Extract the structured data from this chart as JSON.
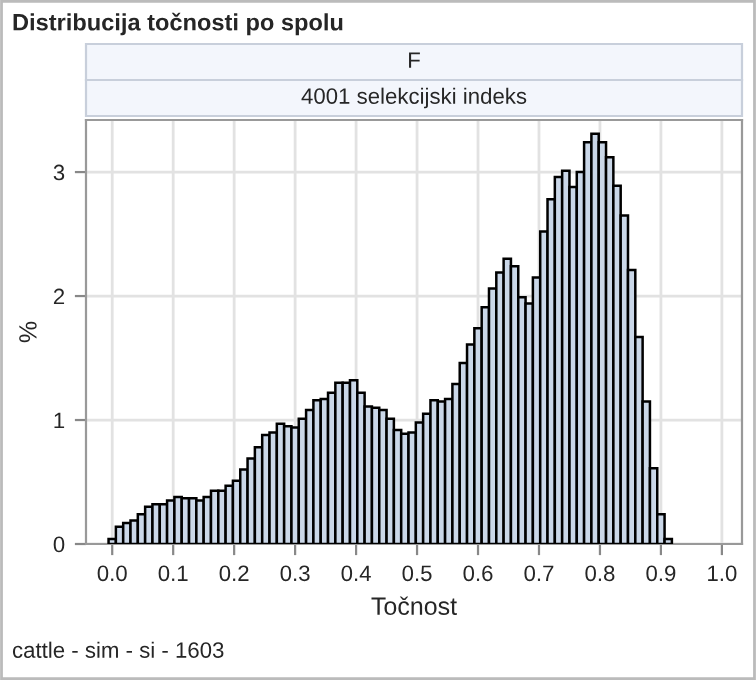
{
  "chart_data": {
    "type": "histogram",
    "title": "Distribucija točnosti po spolu",
    "subtitle": "F",
    "xlabel": "Točnost",
    "ylabel": "%",
    "annotations": [
      "4001 selekcijski indeks",
      "cattle - sim - si - 1603"
    ],
    "bins": [
      -0.006,
      0.006,
      0.018,
      0.03,
      0.042,
      0.054,
      0.066,
      0.078,
      0.09,
      0.102,
      0.114,
      0.126,
      0.138,
      0.15,
      0.162,
      0.174,
      0.186,
      0.198,
      0.21,
      0.222,
      0.234,
      0.246,
      0.258,
      0.27,
      0.282,
      0.294,
      0.306,
      0.318,
      0.33,
      0.342,
      0.354,
      0.366,
      0.378,
      0.39,
      0.402,
      0.414,
      0.426,
      0.438,
      0.45,
      0.462,
      0.474,
      0.486,
      0.498,
      0.51,
      0.522,
      0.534,
      0.546,
      0.558,
      0.57,
      0.582,
      0.594,
      0.606,
      0.618,
      0.63,
      0.642,
      0.654,
      0.666,
      0.678,
      0.69,
      0.702,
      0.714,
      0.726,
      0.738,
      0.75,
      0.762,
      0.774,
      0.786,
      0.798,
      0.81,
      0.822,
      0.834,
      0.846,
      0.858,
      0.87,
      0.882,
      0.894,
      0.906,
      0.918
    ],
    "values": [
      0.04,
      0.14,
      0.17,
      0.19,
      0.24,
      0.3,
      0.32,
      0.32,
      0.35,
      0.38,
      0.37,
      0.37,
      0.35,
      0.38,
      0.43,
      0.43,
      0.47,
      0.51,
      0.6,
      0.69,
      0.78,
      0.88,
      0.9,
      0.97,
      0.95,
      0.94,
      1.01,
      1.08,
      1.16,
      1.17,
      1.22,
      1.3,
      1.3,
      1.32,
      1.22,
      1.11,
      1.1,
      1.08,
      1.01,
      0.92,
      0.89,
      0.9,
      0.98,
      1.05,
      1.16,
      1.15,
      1.17,
      1.29,
      1.46,
      1.61,
      1.74,
      1.91,
      2.06,
      2.19,
      2.3,
      2.24,
      1.99,
      1.94,
      2.15,
      2.52,
      2.78,
      2.96,
      3.01,
      2.88,
      3.0,
      3.24,
      3.31,
      3.24,
      3.12,
      2.89,
      2.65,
      2.21,
      1.67,
      1.15,
      0.61,
      0.24,
      0.04
    ],
    "color": "#cad7e8",
    "xlim": [
      -0.043,
      1.033
    ],
    "ylim": [
      0,
      3.42
    ],
    "xticks": [
      {
        "value": 0,
        "label": "0.0"
      },
      {
        "value": 0.1,
        "label": "0.1"
      },
      {
        "value": 0.2,
        "label": "0.2"
      },
      {
        "value": 0.3,
        "label": "0.3"
      },
      {
        "value": 0.4,
        "label": "0.4"
      },
      {
        "value": 0.5,
        "label": "0.5"
      },
      {
        "value": 0.6,
        "label": "0.6"
      },
      {
        "value": 0.7,
        "label": "0.7"
      },
      {
        "value": 0.8,
        "label": "0.8"
      },
      {
        "value": 0.9,
        "label": "0.9"
      },
      {
        "value": 1.0,
        "label": "1.0"
      }
    ],
    "yticks": [
      0,
      1,
      2,
      3
    ],
    "grid": true
  }
}
